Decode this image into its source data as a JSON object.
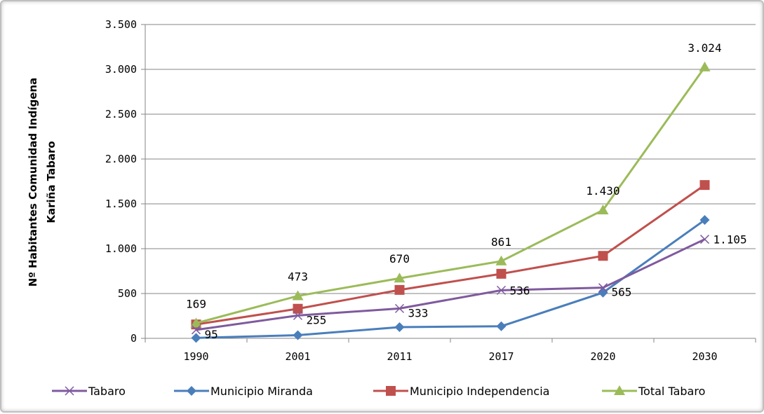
{
  "chart_data": {
    "type": "line",
    "title": "",
    "xlabel": "",
    "ylabel_line1": "Nº Habitantes Comunidad Indígena",
    "ylabel_line2": "Kariña Tabaro",
    "categories": [
      "1990",
      "2001",
      "2011",
      "2017",
      "2020",
      "2030"
    ],
    "ylim": [
      0,
      3500
    ],
    "yticks": [
      0,
      500,
      1000,
      1500,
      2000,
      2500,
      3000,
      3500
    ],
    "ytick_labels": [
      "0",
      "500",
      "1.000",
      "1.500",
      "2.000",
      "2.500",
      "3.000",
      "3.500"
    ],
    "grid": "horizontal",
    "legend_position": "bottom",
    "series": [
      {
        "name": "Tabaro",
        "color": "#7f5a9e",
        "marker": "x",
        "values": [
          95,
          255,
          333,
          536,
          565,
          1105
        ],
        "labels": [
          "95",
          "255",
          "333",
          "536",
          "565",
          "1.105"
        ]
      },
      {
        "name": "Municipio Miranda",
        "color": "#4a7ebb",
        "marker": "diamond",
        "values": [
          5,
          35,
          125,
          135,
          510,
          1320
        ],
        "labels": []
      },
      {
        "name": "Municipio Independencia",
        "color": "#c0504d",
        "marker": "square",
        "values": [
          155,
          330,
          540,
          720,
          920,
          1710
        ],
        "labels": []
      },
      {
        "name": "Total Tabaro",
        "color": "#9bbb59",
        "marker": "triangle",
        "values": [
          169,
          473,
          670,
          861,
          1430,
          3024
        ],
        "labels": [
          "169",
          "473",
          "670",
          "861",
          "1.430",
          "3.024"
        ]
      }
    ]
  }
}
